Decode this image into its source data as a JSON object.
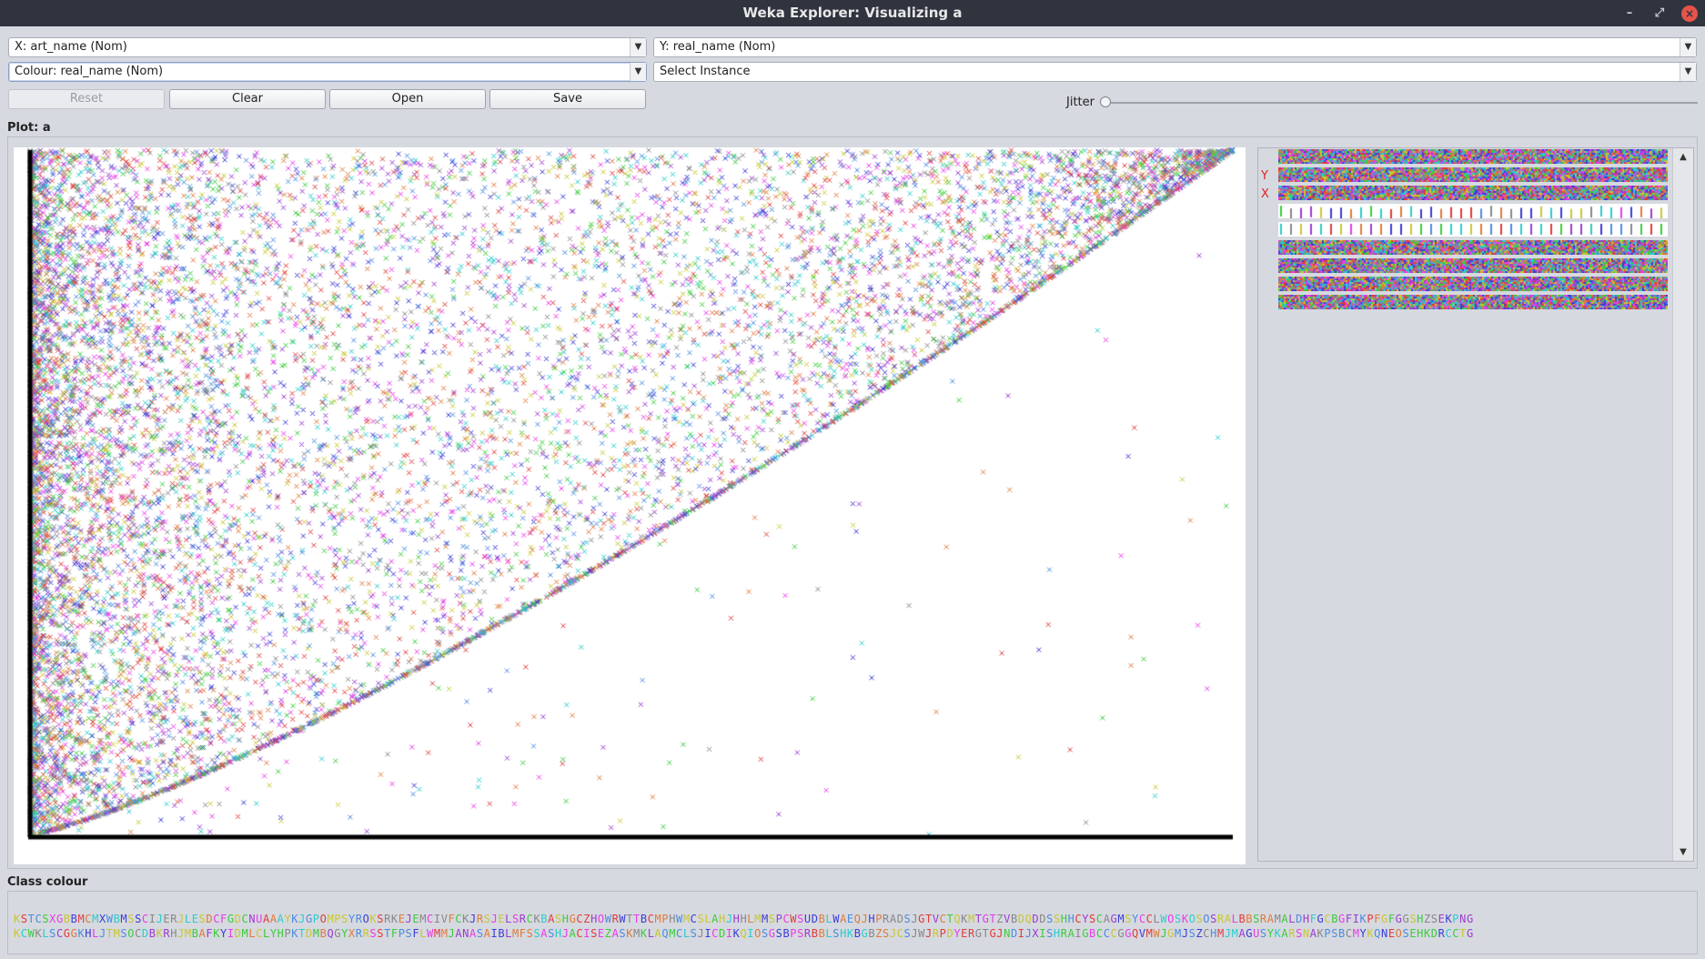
{
  "window": {
    "title": "Weka Explorer: Visualizing a"
  },
  "controls": {
    "x_axis": "X: art_name (Nom)",
    "y_axis": "Y: real_name (Nom)",
    "colour": "Colour: real_name (Nom)",
    "select_instance": "Select Instance",
    "reset_label": "Reset",
    "clear_label": "Clear",
    "open_label": "Open",
    "save_label": "Save",
    "jitter_label": "Jitter",
    "jitter_value": 0
  },
  "plot": {
    "title": "Plot: a"
  },
  "attribute_panel": {
    "y_marker": "Y",
    "x_marker": "X"
  },
  "class_colour": {
    "title": "Class colour",
    "row1": "KSTCSXGBBMCMXWBMSSCIJERJLESDCFGDCNUAAAYKJGPOMPSYROKSRKEJEMCIVFCKJRSJELSRCKBASHGCZHOWRWTTBCMPHWMCSLAHJHHLMMSPCWSUDBLWAEQJHPRADSJGTVCTQKMTGTZVBDQDDSSHHCYSCAGMSYCCLWOSKOSOSRALBBSRAMALDHFGCBGFIKPFGFGGSHZSEKPNG",
    "row2": "KCWKLSCGGKHLJTMSOCDBKRHJMBAFKYIDMLCLYHPKTDMBQGYXRRSSTFPSFLWMMJANASAIBLMFSSASHJACISEZASKMKLAQMCLSJICDIKQIOSGSBPSRBBLSHKBGBZSJCSJWJRPDYERGTGJNDIJXISHRAIGBCCCGGQVMWJGMJSZCHMJMAGUSYKARSNAKPSBCMYKQNEOSEHKDRCCTG",
    "palette": [
      "#e03c3c",
      "#3ccc3c",
      "#3c3cd8",
      "#e83ce8",
      "#2ccccc",
      "#c8c832",
      "#888888",
      "#e07a3c",
      "#4c8ce0",
      "#9c3cd0"
    ]
  }
}
